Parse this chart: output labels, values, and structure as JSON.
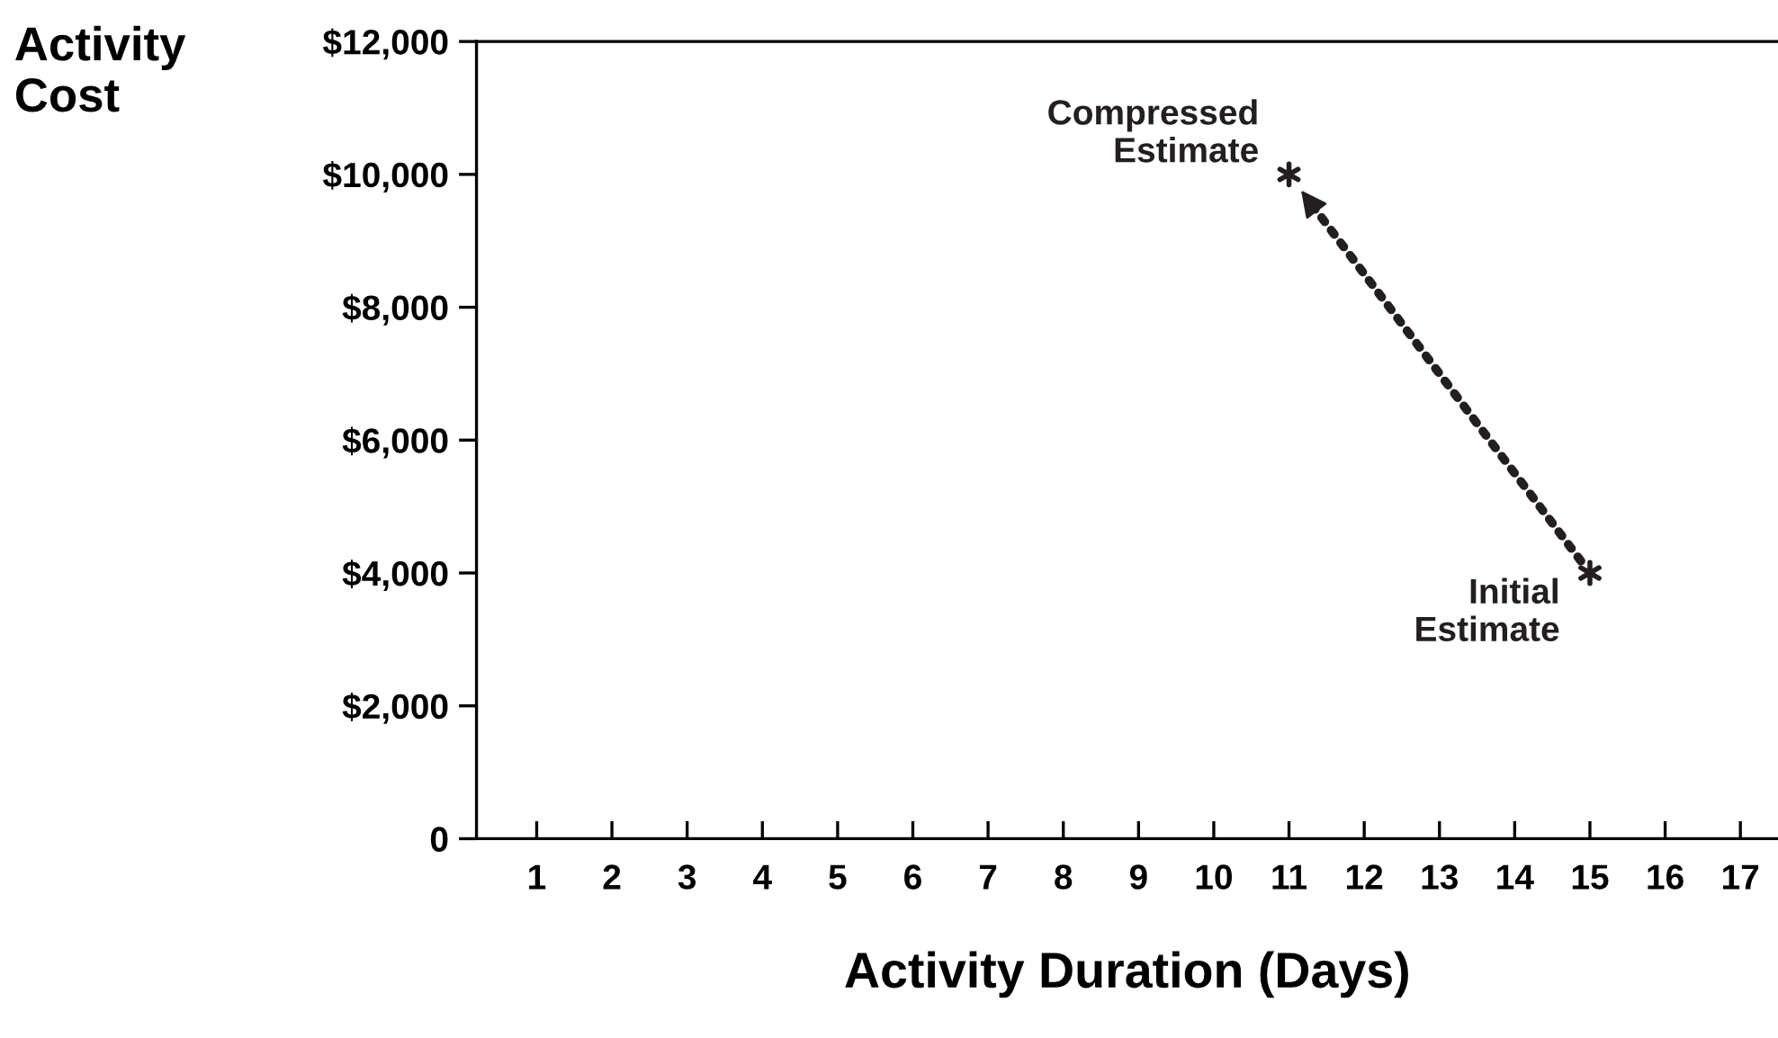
{
  "chart_data": {
    "type": "scatter",
    "xlabel": "Activity Duration (Days)",
    "ylabel": "Activity Cost",
    "x": [
      15,
      11
    ],
    "series": [
      {
        "color": "#231f20",
        "values": [
          4000,
          10000
        ]
      }
    ],
    "marker": "cross",
    "xlim": [
      0.2,
      17.5
    ],
    "xticks": [
      1,
      2,
      3,
      4,
      5,
      6,
      7,
      8,
      9,
      10,
      11,
      12,
      13,
      14,
      15,
      16,
      17
    ],
    "ylim": [
      0,
      12000
    ],
    "yticks": [
      {
        "value": 0,
        "label": "0"
      },
      {
        "value": 2000,
        "label": "$2,000"
      },
      {
        "value": 4000,
        "label": "$4,000"
      },
      {
        "value": 6000,
        "label": "$6,000"
      },
      {
        "value": 8000,
        "label": "$8,000"
      },
      {
        "value": 10000,
        "label": "$10,000"
      },
      {
        "value": 12000,
        "label": "$12,000"
      }
    ],
    "grid": false,
    "annotations": [
      {
        "text": "Initial\nEstimate",
        "x": 15,
        "y": 4000
      },
      {
        "text": "Compressed\nEstimate",
        "x": 11,
        "y": 10000
      }
    ]
  }
}
